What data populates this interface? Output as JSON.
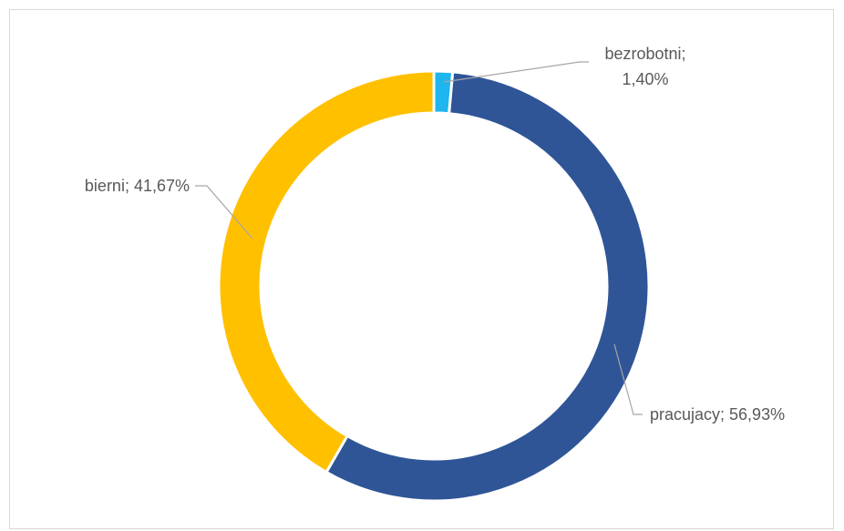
{
  "chart_data": {
    "type": "pie",
    "subtype": "doughnut",
    "title": "",
    "slices": [
      {
        "label": "bezrobotni",
        "value": 1.4,
        "display": "bezrobotni;",
        "display2": "1,40%",
        "color": "#1FB5EE"
      },
      {
        "label": "pracujacy",
        "value": 56.93,
        "display": "pracujacy; 56,93%",
        "color": "#2F5597"
      },
      {
        "label": "bierni",
        "value": 41.67,
        "display": "bierni; 41,67%",
        "color": "#FFC000"
      }
    ],
    "legend": "none",
    "data_labels": "outside with leader lines"
  }
}
